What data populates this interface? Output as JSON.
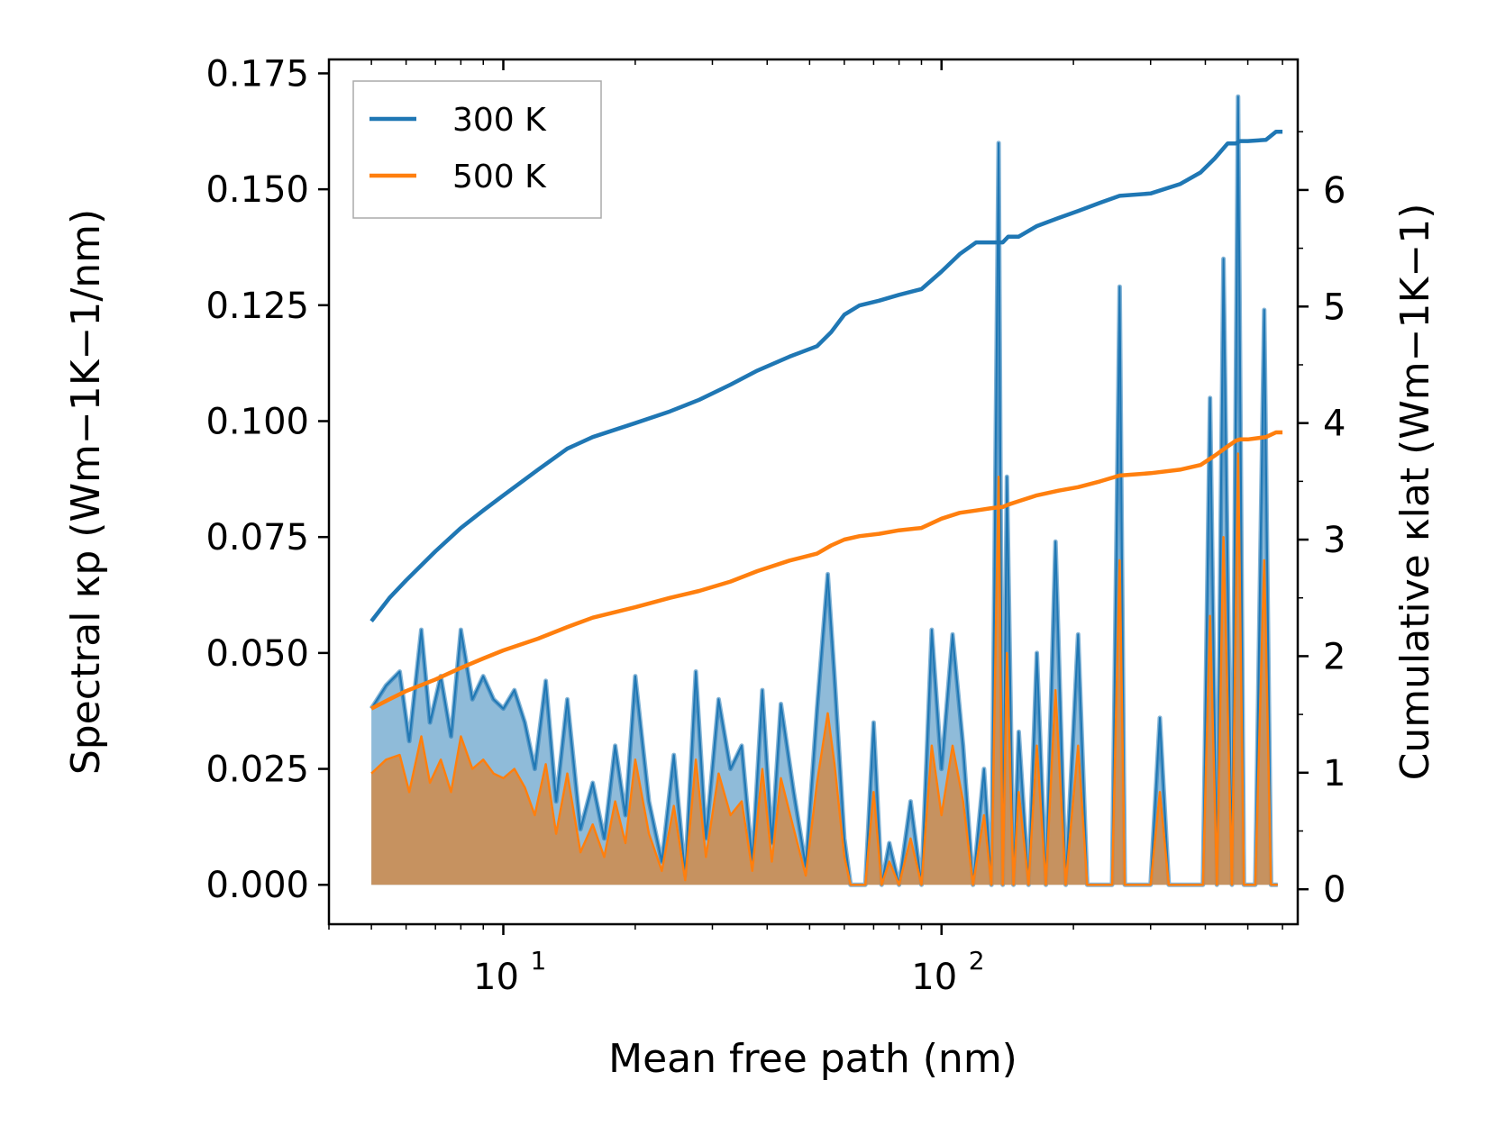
{
  "chart_data": {
    "type": "line",
    "xlabel": "Mean free path (nm)",
    "ylabel_left": "Spectral κp (Wm−1K−1/nm)",
    "ylabel_right": "Cumulative κlat (Wm−1K−1)",
    "xscale": "log",
    "xlim": [
      4.0,
      650
    ],
    "ylim_left": [
      -0.0085,
      0.178
    ],
    "ylim_right": [
      -0.3,
      7.12
    ],
    "x_ticks": [
      {
        "value": 10,
        "base": "10",
        "exp": "1"
      },
      {
        "value": 100,
        "base": "10",
        "exp": "2"
      }
    ],
    "y_left_ticks": [
      "0.000",
      "0.025",
      "0.050",
      "0.075",
      "0.100",
      "0.125",
      "0.150",
      "0.175"
    ],
    "y_right_ticks": [
      "0",
      "1",
      "2",
      "3",
      "4",
      "5",
      "6"
    ],
    "legend": {
      "position": "top-left",
      "entries": [
        "300 K",
        "500 K"
      ]
    },
    "colors": {
      "300K": "#1f77b4",
      "500K": "#ff7f0e",
      "fill_300K": "#1f77b4",
      "fill_500K": "#d08b4a"
    },
    "spectral": {
      "x": [
        5.0,
        5.4,
        5.8,
        6.1,
        6.5,
        6.8,
        7.2,
        7.6,
        8.0,
        8.5,
        9.0,
        9.5,
        10.0,
        10.6,
        11.2,
        11.8,
        12.5,
        13.2,
        14.0,
        15.0,
        16.0,
        17.0,
        18.0,
        19.0,
        20.0,
        21.5,
        23.0,
        24.5,
        26.0,
        27.5,
        29.0,
        31.0,
        33.0,
        35.0,
        37.0,
        39.0,
        41.0,
        43.0,
        46.0,
        49.0,
        52.0,
        55.0,
        57.0,
        60.0,
        62.0,
        65.0,
        67.0,
        70.0,
        73.0,
        76.0,
        80.0,
        85.0,
        90.0,
        95.0,
        100.0,
        106.0,
        112.0,
        118.0,
        125.0,
        130.0,
        135.0,
        138.0,
        141.0,
        146.0,
        150.0,
        158.0,
        165.0,
        173.0,
        182.0,
        192.0,
        205.0,
        215.0,
        230.0,
        245.0,
        255.0,
        262.0,
        275.0,
        300.0,
        315.0,
        330.0,
        360.0,
        380.0,
        395.0,
        410.0,
        425.0,
        440.0,
        460.0,
        475.0,
        490.0,
        520.0,
        545.0,
        565.0,
        585.0
      ],
      "y_300K": [
        0.038,
        0.043,
        0.046,
        0.031,
        0.055,
        0.035,
        0.045,
        0.032,
        0.055,
        0.04,
        0.045,
        0.04,
        0.038,
        0.042,
        0.035,
        0.025,
        0.044,
        0.018,
        0.04,
        0.012,
        0.022,
        0.01,
        0.03,
        0.015,
        0.045,
        0.018,
        0.005,
        0.028,
        0.002,
        0.046,
        0.01,
        0.04,
        0.025,
        0.03,
        0.005,
        0.042,
        0.009,
        0.039,
        0.02,
        0.004,
        0.038,
        0.067,
        0.045,
        0.01,
        0.0,
        0.0,
        0.0,
        0.035,
        0.0,
        0.009,
        0.0,
        0.018,
        0.0,
        0.055,
        0.025,
        0.054,
        0.03,
        0.0,
        0.025,
        0.0,
        0.16,
        0.0,
        0.088,
        0.0,
        0.033,
        0.0,
        0.05,
        0.0,
        0.074,
        0.0,
        0.054,
        0.0,
        0.0,
        0.0,
        0.129,
        0.0,
        0.0,
        0.0,
        0.036,
        0.0,
        0.0,
        0.0,
        0.0,
        0.105,
        0.0,
        0.135,
        0.0,
        0.17,
        0.0,
        0.0,
        0.124,
        0.0,
        0.0
      ],
      "y_500K": [
        0.024,
        0.027,
        0.028,
        0.02,
        0.032,
        0.022,
        0.027,
        0.02,
        0.032,
        0.025,
        0.027,
        0.024,
        0.023,
        0.025,
        0.021,
        0.015,
        0.026,
        0.011,
        0.024,
        0.007,
        0.013,
        0.006,
        0.018,
        0.009,
        0.027,
        0.011,
        0.003,
        0.017,
        0.001,
        0.027,
        0.006,
        0.024,
        0.015,
        0.018,
        0.003,
        0.025,
        0.005,
        0.023,
        0.012,
        0.002,
        0.022,
        0.037,
        0.026,
        0.006,
        0.0,
        0.0,
        0.0,
        0.02,
        0.0,
        0.005,
        0.0,
        0.01,
        0.0,
        0.03,
        0.015,
        0.03,
        0.018,
        0.0,
        0.015,
        0.0,
        0.088,
        0.0,
        0.05,
        0.0,
        0.02,
        0.0,
        0.03,
        0.0,
        0.042,
        0.0,
        0.03,
        0.0,
        0.0,
        0.0,
        0.07,
        0.0,
        0.0,
        0.0,
        0.02,
        0.0,
        0.0,
        0.0,
        0.0,
        0.058,
        0.0,
        0.075,
        0.0,
        0.093,
        0.0,
        0.0,
        0.07,
        0.0,
        0.0
      ]
    },
    "cumulative": {
      "x": [
        5.0,
        5.5,
        6.0,
        7.0,
        8.0,
        9.0,
        10.0,
        12.0,
        14.0,
        16.0,
        20.0,
        24.0,
        28.0,
        33.0,
        38.0,
        45.0,
        52.0,
        56.0,
        60.0,
        65.0,
        72.0,
        80.0,
        90.0,
        100.0,
        110.0,
        120.0,
        130.0,
        138.0,
        142.0,
        150.0,
        165.0,
        185.0,
        205.0,
        230.0,
        255.0,
        300.0,
        350.0,
        390.0,
        420.0,
        450.0,
        470.0,
        480.0,
        500.0,
        550.0,
        580.0,
        600.0
      ],
      "y_300K": [
        2.3,
        2.5,
        2.65,
        2.9,
        3.1,
        3.25,
        3.38,
        3.6,
        3.78,
        3.88,
        4.0,
        4.1,
        4.2,
        4.33,
        4.45,
        4.57,
        4.66,
        4.78,
        4.93,
        5.01,
        5.05,
        5.1,
        5.15,
        5.3,
        5.45,
        5.55,
        5.55,
        5.55,
        5.6,
        5.6,
        5.69,
        5.76,
        5.82,
        5.89,
        5.95,
        5.97,
        6.05,
        6.15,
        6.27,
        6.4,
        6.4,
        6.42,
        6.42,
        6.43,
        6.5,
        6.5
      ],
      "y_500K": [
        1.55,
        1.63,
        1.7,
        1.8,
        1.9,
        1.98,
        2.05,
        2.15,
        2.25,
        2.33,
        2.42,
        2.5,
        2.56,
        2.64,
        2.73,
        2.82,
        2.88,
        2.95,
        3.0,
        3.03,
        3.05,
        3.08,
        3.1,
        3.18,
        3.23,
        3.25,
        3.27,
        3.28,
        3.3,
        3.33,
        3.38,
        3.42,
        3.45,
        3.5,
        3.55,
        3.57,
        3.6,
        3.64,
        3.72,
        3.8,
        3.85,
        3.86,
        3.86,
        3.88,
        3.92,
        3.92
      ]
    }
  }
}
